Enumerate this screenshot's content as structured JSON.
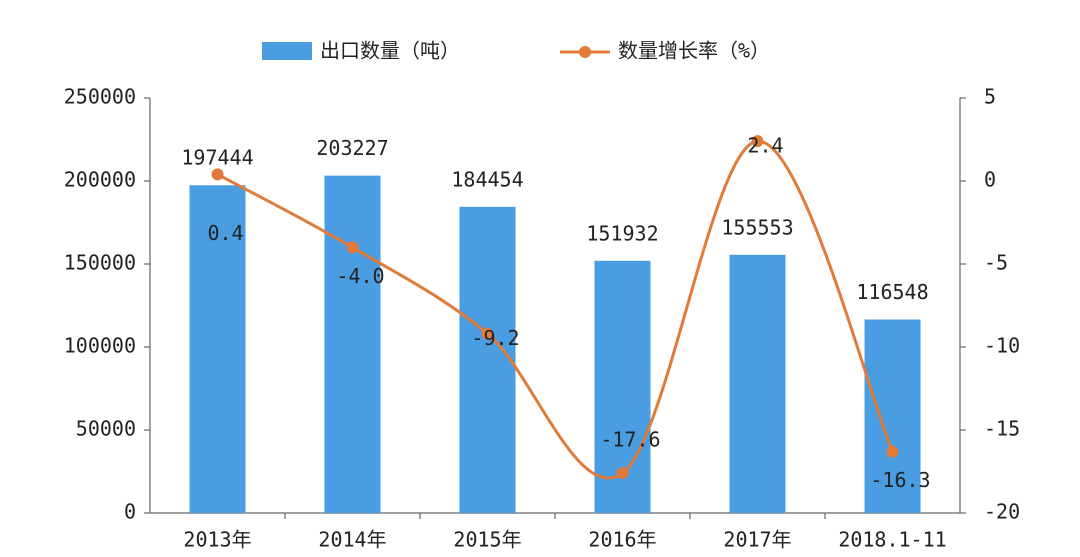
{
  "chart_data": {
    "type": "bar_line",
    "categories": [
      "2013年",
      "2014年",
      "2015年",
      "2016年",
      "2017年",
      "2018.1-11"
    ],
    "series": [
      {
        "name": "出口数量（吨）",
        "color": "#4a9de0",
        "values": [
          197444,
          203227,
          184454,
          151932,
          155553,
          116548
        ]
      },
      {
        "name": "数量增长率（%）",
        "color": "#e07b39",
        "axis": "y2",
        "values": [
          0.4,
          -4.0,
          -9.2,
          -17.6,
          2.4,
          -16.3
        ],
        "value_labels": [
          "0.4",
          "-4.0",
          "-9.2",
          "-17.6",
          "2.4",
          "-16.3"
        ]
      }
    ],
    "ylim": [
      0,
      250000
    ],
    "yticks": [
      0,
      50000,
      100000,
      150000,
      200000,
      250000
    ],
    "y2lim": [
      -20,
      5
    ],
    "y2ticks": [
      -20,
      -15,
      -10,
      -5,
      0,
      5
    ],
    "legend": "top"
  }
}
